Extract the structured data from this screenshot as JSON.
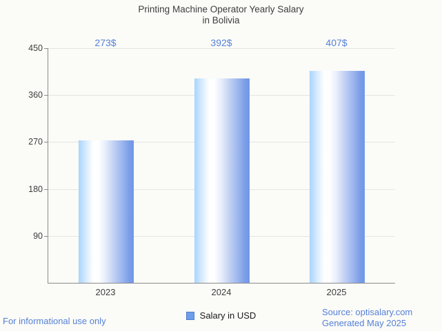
{
  "title": {
    "line1": "Printing Machine Operator Yearly Salary",
    "line2": "in Bolivia"
  },
  "chart_data": {
    "type": "bar",
    "title": "Printing Machine Operator Yearly Salary in Bolivia",
    "categories": [
      "2023",
      "2024",
      "2025"
    ],
    "values": [
      273,
      392,
      407
    ],
    "value_labels": [
      "273$",
      "392$",
      "407$"
    ],
    "series_name": "Salary in USD",
    "xlabel": "",
    "ylabel": "",
    "ylim": [
      0,
      450
    ],
    "y_ticks": [
      90,
      180,
      270,
      360,
      450
    ],
    "grid": true,
    "legend_position": "bottom",
    "bar_gradient": [
      "#a8d5fc",
      "#ffffff",
      "#7097e6"
    ]
  },
  "legend": {
    "label": "Salary in USD",
    "swatch_color": "#6d9eeb"
  },
  "footer": {
    "left": "For informational use only",
    "source": "Source: optisalary.com",
    "generated": "Generated May 2025"
  },
  "colors": {
    "accent_text": "#5681d6",
    "axis_text": "#3d3d3d",
    "grid_line": "#e4e4e4",
    "axis_line": "#8a8a8a",
    "background": "#fbfbf8"
  }
}
